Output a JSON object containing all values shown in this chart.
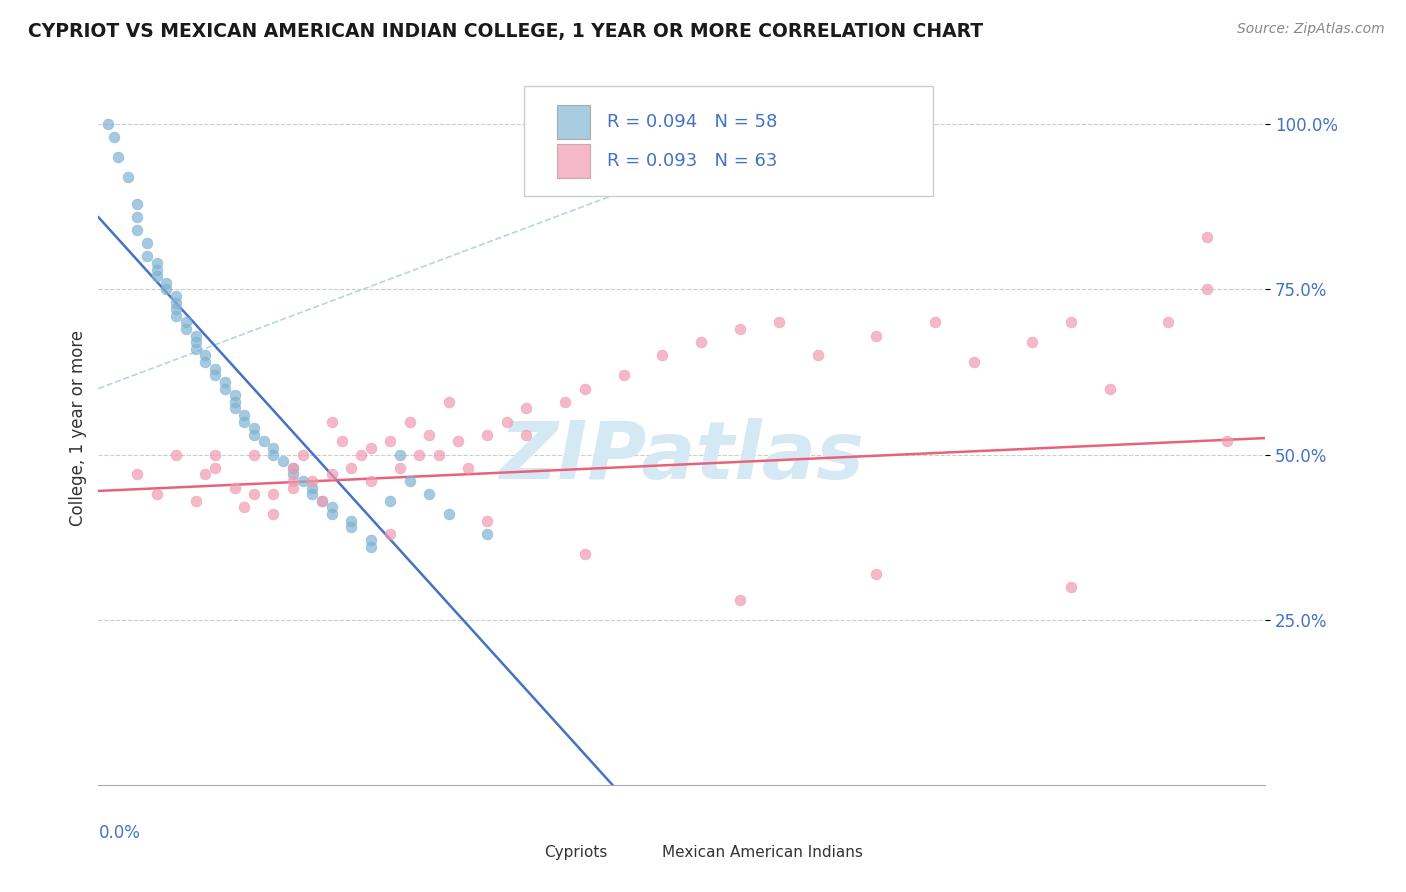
{
  "title": "CYPRIOT VS MEXICAN AMERICAN INDIAN COLLEGE, 1 YEAR OR MORE CORRELATION CHART",
  "source": "Source: ZipAtlas.com",
  "ylabel": "College, 1 year or more",
  "ytick_vals": [
    0.25,
    0.5,
    0.75,
    1.0
  ],
  "ytick_labels": [
    "25.0%",
    "50.0%",
    "75.0%",
    "100.0%"
  ],
  "xmin": 0.0,
  "xmax": 0.6,
  "ymin": 0.0,
  "ymax": 1.08,
  "color_blue": "#a8cce0",
  "color_pink": "#f4b8c8",
  "color_blue_dot": "#7fb3d3",
  "color_pink_dot": "#f09ab0",
  "color_blue_text": "#4472c4",
  "color_regression_blue_dashed": "#b8d4e8",
  "color_regression_blue_solid": "#4472c4",
  "color_regression_pink": "#e8627a",
  "watermark_color": "#d5e9f5",
  "legend_r1": "R = 0.094",
  "legend_n1": "N = 58",
  "legend_r2": "R = 0.093",
  "legend_n2": "N = 63",
  "cypriot_x": [
    0.005,
    0.008,
    0.01,
    0.015,
    0.02,
    0.02,
    0.02,
    0.025,
    0.025,
    0.03,
    0.03,
    0.03,
    0.035,
    0.035,
    0.04,
    0.04,
    0.04,
    0.04,
    0.045,
    0.045,
    0.05,
    0.05,
    0.05,
    0.055,
    0.055,
    0.06,
    0.06,
    0.065,
    0.065,
    0.07,
    0.07,
    0.07,
    0.075,
    0.075,
    0.08,
    0.08,
    0.085,
    0.09,
    0.09,
    0.095,
    0.1,
    0.1,
    0.105,
    0.11,
    0.11,
    0.115,
    0.12,
    0.12,
    0.13,
    0.13,
    0.14,
    0.14,
    0.15,
    0.155,
    0.16,
    0.17,
    0.18,
    0.2
  ],
  "cypriot_y": [
    1.0,
    0.98,
    0.95,
    0.92,
    0.88,
    0.86,
    0.84,
    0.82,
    0.8,
    0.79,
    0.78,
    0.77,
    0.76,
    0.75,
    0.74,
    0.73,
    0.72,
    0.71,
    0.7,
    0.69,
    0.68,
    0.67,
    0.66,
    0.65,
    0.64,
    0.63,
    0.62,
    0.61,
    0.6,
    0.59,
    0.58,
    0.57,
    0.56,
    0.55,
    0.54,
    0.53,
    0.52,
    0.51,
    0.5,
    0.49,
    0.48,
    0.47,
    0.46,
    0.45,
    0.44,
    0.43,
    0.42,
    0.41,
    0.4,
    0.39,
    0.37,
    0.36,
    0.43,
    0.5,
    0.46,
    0.44,
    0.41,
    0.38
  ],
  "mexican_x": [
    0.02,
    0.03,
    0.04,
    0.05,
    0.055,
    0.06,
    0.07,
    0.075,
    0.08,
    0.09,
    0.09,
    0.1,
    0.1,
    0.105,
    0.11,
    0.115,
    0.12,
    0.12,
    0.125,
    0.13,
    0.135,
    0.14,
    0.14,
    0.15,
    0.155,
    0.16,
    0.165,
    0.17,
    0.175,
    0.18,
    0.185,
    0.19,
    0.2,
    0.21,
    0.22,
    0.22,
    0.24,
    0.25,
    0.27,
    0.29,
    0.31,
    0.33,
    0.35,
    0.37,
    0.4,
    0.43,
    0.45,
    0.48,
    0.5,
    0.5,
    0.52,
    0.55,
    0.57,
    0.57,
    0.4,
    0.33,
    0.25,
    0.2,
    0.15,
    0.1,
    0.08,
    0.06,
    0.58
  ],
  "mexican_y": [
    0.47,
    0.44,
    0.5,
    0.43,
    0.47,
    0.5,
    0.45,
    0.42,
    0.5,
    0.44,
    0.41,
    0.48,
    0.45,
    0.5,
    0.46,
    0.43,
    0.55,
    0.47,
    0.52,
    0.48,
    0.5,
    0.51,
    0.46,
    0.52,
    0.48,
    0.55,
    0.5,
    0.53,
    0.5,
    0.58,
    0.52,
    0.48,
    0.53,
    0.55,
    0.57,
    0.53,
    0.58,
    0.6,
    0.62,
    0.65,
    0.67,
    0.69,
    0.7,
    0.65,
    0.68,
    0.7,
    0.64,
    0.67,
    0.7,
    0.3,
    0.6,
    0.7,
    0.75,
    0.83,
    0.32,
    0.28,
    0.35,
    0.4,
    0.38,
    0.46,
    0.44,
    0.48,
    0.52
  ]
}
